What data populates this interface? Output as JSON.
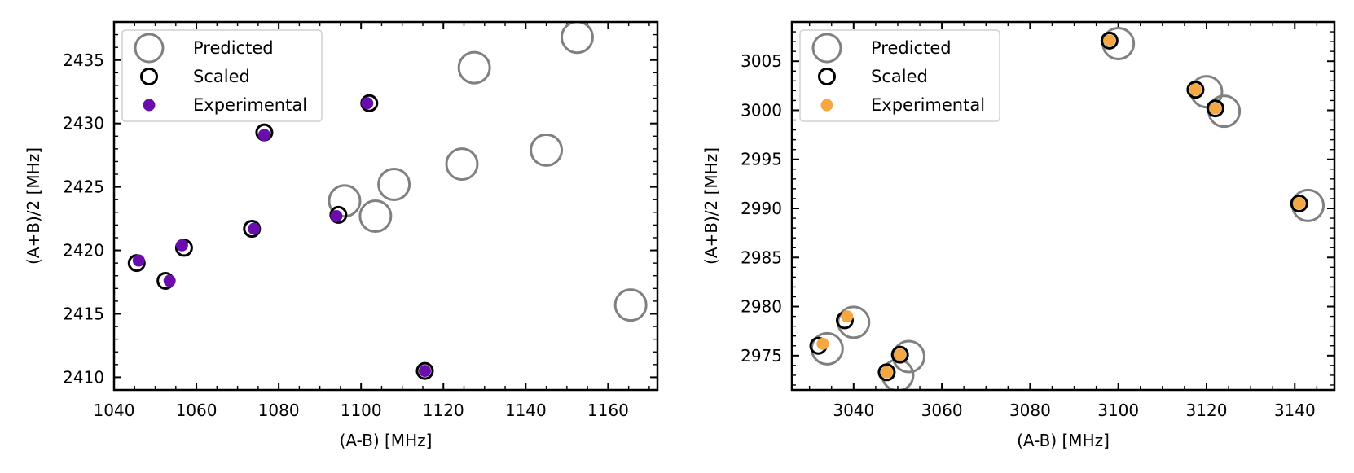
{
  "chart_data": [
    {
      "type": "scatter",
      "xlabel": "(A-B) [MHz]",
      "ylabel": "(A+B)/2 [MHz]",
      "xlim": [
        1040,
        1172
      ],
      "ylim": [
        2409,
        2438
      ],
      "xticks": [
        1040,
        1060,
        1080,
        1100,
        1120,
        1140,
        1160
      ],
      "yticks": [
        2410,
        2415,
        2420,
        2425,
        2430,
        2435
      ],
      "legend_position": "top-left",
      "colors": {
        "experimental": "#6a0dad",
        "predicted": "#808080",
        "scaled": "#000000"
      },
      "series": [
        {
          "name": "Predicted",
          "marker": "open-circle-large",
          "points": [
            [
              1096,
              2423.9
            ],
            [
              1103.5,
              2422.7
            ],
            [
              1108,
              2425.2
            ],
            [
              1124.5,
              2426.8
            ],
            [
              1127.5,
              2434.4
            ],
            [
              1145,
              2427.9
            ],
            [
              1152.5,
              2436.8
            ],
            [
              1165.5,
              2415.7
            ]
          ]
        },
        {
          "name": "Scaled",
          "marker": "open-circle",
          "points": [
            [
              1045.5,
              2419
            ],
            [
              1052.5,
              2417.6
            ],
            [
              1057,
              2420.2
            ],
            [
              1073.5,
              2421.7
            ],
            [
              1076.5,
              2429.3
            ],
            [
              1094.5,
              2422.8
            ],
            [
              1102,
              2431.6
            ],
            [
              1115.5,
              2410.5
            ]
          ]
        },
        {
          "name": "Experimental",
          "marker": "filled-dot",
          "points": [
            [
              1046,
              2419.2
            ],
            [
              1053.5,
              2417.6
            ],
            [
              1056.5,
              2420.4
            ],
            [
              1074,
              2421.7
            ],
            [
              1076.5,
              2429.1
            ],
            [
              1094,
              2422.7
            ],
            [
              1101.5,
              2431.6
            ],
            [
              1115.5,
              2410.5
            ]
          ]
        }
      ]
    },
    {
      "type": "scatter",
      "xlabel": "(A-B) [MHz]",
      "ylabel": "(A+B)/2 [MHz]",
      "xlim": [
        3026,
        3149
      ],
      "ylim": [
        2971.5,
        3009
      ],
      "xticks": [
        3040,
        3060,
        3080,
        3100,
        3120,
        3140
      ],
      "yticks": [
        2975,
        2980,
        2985,
        2990,
        2995,
        3000,
        3005
      ],
      "legend_position": "top-left",
      "colors": {
        "experimental": "#f5a742",
        "predicted": "#808080",
        "scaled": "#000000"
      },
      "series": [
        {
          "name": "Predicted",
          "marker": "open-circle-large",
          "points": [
            [
              3034,
              2975.7
            ],
            [
              3040,
              2978.4
            ],
            [
              3050,
              2973
            ],
            [
              3052.5,
              2974.9
            ],
            [
              3100,
              3006.8
            ],
            [
              3120,
              3001.9
            ],
            [
              3124,
              2999.9
            ],
            [
              3143,
              2990.3
            ]
          ]
        },
        {
          "name": "Scaled",
          "marker": "open-circle",
          "points": [
            [
              3032,
              2976
            ],
            [
              3038,
              2978.6
            ],
            [
              3047.5,
              2973.3
            ],
            [
              3050.5,
              2975.1
            ],
            [
              3098,
              3007.1
            ],
            [
              3117.5,
              3002.1
            ],
            [
              3122,
              3000.2
            ],
            [
              3141,
              2990.5
            ]
          ]
        },
        {
          "name": "Experimental",
          "marker": "filled-dot",
          "points": [
            [
              3033,
              2976.2
            ],
            [
              3038.5,
              2979
            ],
            [
              3047.5,
              2973.3
            ],
            [
              3050.5,
              2975.1
            ],
            [
              3098,
              3007.1
            ],
            [
              3117.5,
              3002.1
            ],
            [
              3122,
              3000.2
            ],
            [
              3141,
              2990.5
            ]
          ]
        }
      ]
    }
  ]
}
